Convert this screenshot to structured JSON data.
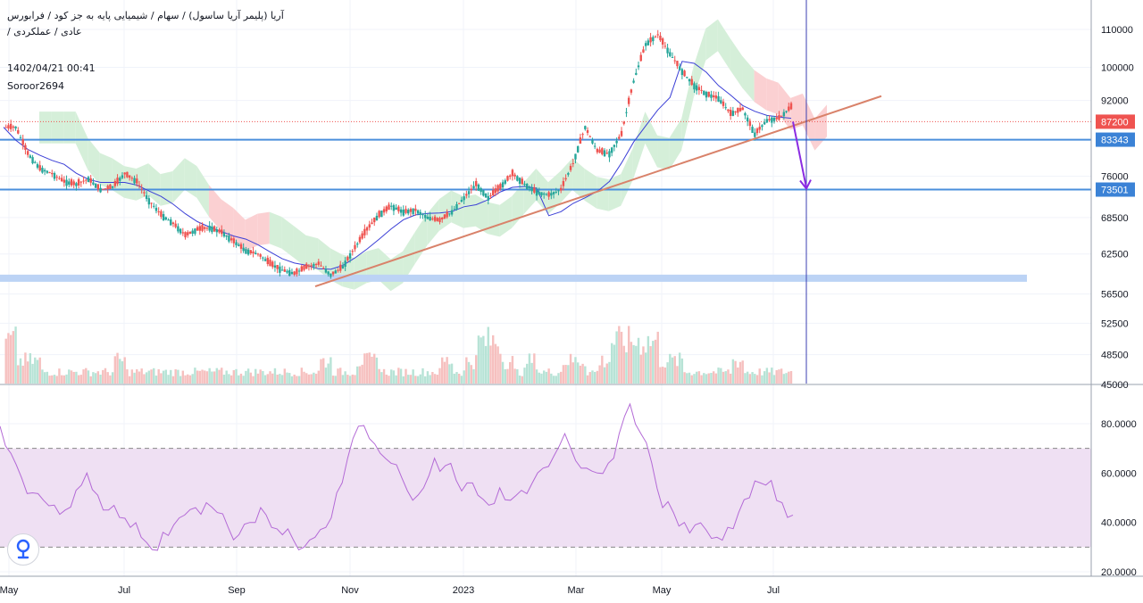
{
  "header": {
    "line1": "آریا (پلیمر آریا ساسول) / سهام / شیمیایی پایه به جز کود / فرابورس",
    "line2": "عادی / عملکردی /",
    "date": "1402/04/21 00:41",
    "author": "Soroor2694"
  },
  "logo_icon": "pin-logo-icon",
  "colors": {
    "up": "#26a69a",
    "down": "#ef5350",
    "up_vol": "#b7e3d6",
    "down_vol": "#f6c0bf",
    "ma": "#3b3fd6",
    "cloud_green": "#d5efd9",
    "cloud_red": "#fbd0d2",
    "hline": "#4a8fdc",
    "zone": "#bcd3f5",
    "trend": "#d9826a",
    "arrow": "#8a2be2",
    "vline": "#3b3fb0",
    "rsi": "#b36ad6",
    "rsi_band": "#efe0f3",
    "price_badge": "#ef5350",
    "level_badge": "#3b82d6"
  },
  "chart_data": [
    {
      "type": "candlestick",
      "role": "price",
      "y_ticks": [
        "110000",
        "100000",
        "92000",
        "76000",
        "68500",
        "62500",
        "56500",
        "52500",
        "48500",
        "45000"
      ],
      "x_ticks": [
        "May",
        "Jul",
        "Sep",
        "Nov",
        "2023",
        "Mar",
        "May",
        "Jul"
      ],
      "log_scale": true,
      "ylim": [
        41500,
        118000
      ],
      "last_price_label": "87200",
      "last_price": 87200,
      "levels": [
        {
          "label": "83343",
          "value": 83343
        },
        {
          "label": "73501",
          "value": 73501
        }
      ],
      "support_zone": 58800,
      "trendline": [
        {
          "x": "2022-10-21",
          "y": 57600
        },
        {
          "x": "2023-09-15",
          "y": 93000
        }
      ],
      "vertical_marker": "2023-08-01",
      "target_arrow": {
        "from": 87200,
        "to": 73501
      },
      "closes_weekly": [
        86000,
        80500,
        77500,
        76500,
        75000,
        74500,
        75500,
        73500,
        74000,
        76500,
        75000,
        71500,
        69000,
        67500,
        65500,
        66500,
        66800,
        66000,
        64500,
        63000,
        62500,
        61000,
        60000,
        59500,
        60500,
        61000,
        59300,
        60500,
        63500,
        66500,
        69000,
        70500,
        69500,
        69800,
        68500,
        68000,
        69500,
        72000,
        74500,
        72000,
        74000,
        76500,
        74500,
        73000,
        72500,
        73500,
        78500,
        86000,
        81000,
        80500,
        84500,
        96500,
        106000,
        108500,
        103500,
        99000,
        95500,
        93500,
        92500,
        89000,
        90000,
        84500,
        87500,
        88000,
        90500,
        87200
      ],
      "volume_level": [
        "high",
        "med",
        "med",
        "low",
        "low",
        "low",
        "low",
        "low",
        "low",
        "med",
        "low",
        "low",
        "low",
        "low",
        "low",
        "low",
        "low",
        "low",
        "low",
        "low",
        "low",
        "low",
        "low",
        "low",
        "low",
        "low",
        "med",
        "low",
        "low",
        "med",
        "med",
        "low",
        "low",
        "low",
        "low",
        "low",
        "med",
        "low",
        "med",
        "high",
        "high",
        "med",
        "low",
        "med",
        "low",
        "low",
        "med",
        "med",
        "low",
        "med",
        "high",
        "high",
        "high",
        "high",
        "med",
        "med",
        "low",
        "low",
        "low",
        "low",
        "med",
        "low",
        "low",
        "low",
        "low",
        "low"
      ]
    },
    {
      "type": "line",
      "role": "rsi",
      "y_ticks": [
        "80.0000",
        "60.0000",
        "40.0000",
        "20.0000"
      ],
      "ylim": [
        18,
        87
      ],
      "upper_band": 70,
      "lower_band": 30,
      "values": [
        79,
        68,
        58,
        52,
        49,
        47,
        45,
        53,
        60,
        51,
        45,
        42,
        38,
        34,
        29,
        36,
        39,
        43,
        46,
        48,
        44,
        38,
        35,
        40,
        46,
        38,
        35,
        33,
        30,
        34,
        38,
        52,
        66,
        79,
        74,
        68,
        64,
        58,
        49,
        54,
        66,
        63,
        57,
        56,
        51,
        47,
        54,
        49,
        53,
        56,
        62,
        67,
        76,
        65,
        62,
        60,
        64,
        76,
        88,
        76,
        64,
        46,
        44,
        40,
        39,
        37,
        34,
        38,
        44,
        50,
        56,
        57,
        48,
        43
      ]
    }
  ]
}
